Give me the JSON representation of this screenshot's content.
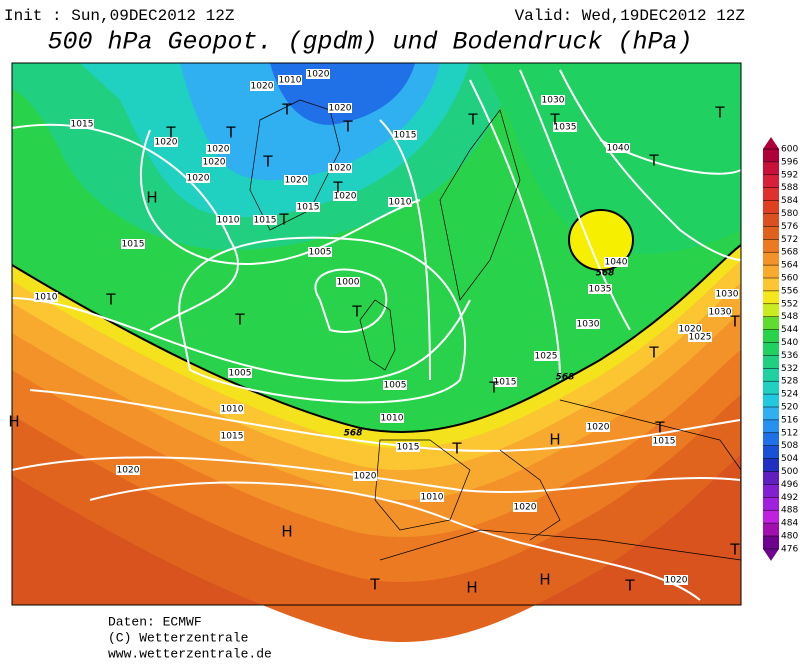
{
  "header": {
    "init": "Init : Sun,09DEC2012 12Z",
    "valid": "Valid: Wed,19DEC2012 12Z",
    "title": "500 hPa Geopot. (gpdm) und Bodendruck (hPa)"
  },
  "colorbar": {
    "ticks": [
      600,
      596,
      592,
      588,
      584,
      580,
      576,
      572,
      568,
      564,
      560,
      556,
      552,
      548,
      544,
      540,
      536,
      532,
      528,
      524,
      520,
      516,
      512,
      508,
      504,
      500,
      496,
      492,
      488,
      484,
      480,
      476
    ],
    "colors": [
      "#b0003a",
      "#c8103a",
      "#d8203a",
      "#e0302e",
      "#e04020",
      "#dc5020",
      "#e06020",
      "#ec7a22",
      "#f39228",
      "#f8aa2e",
      "#fbc632",
      "#f6e61c",
      "#c8ec20",
      "#60dc30",
      "#28d24a",
      "#20d060",
      "#20d080",
      "#20d0a0",
      "#20d0c0",
      "#20c8e0",
      "#30b0f0",
      "#2890f0",
      "#2070e8",
      "#1850d8",
      "#2030c0",
      "#6020c0",
      "#8020d0",
      "#a020e0",
      "#c020e0",
      "#a010b0",
      "#700090"
    ]
  },
  "map": {
    "isobar_labels": [
      "1015",
      "1020",
      "1020",
      "1020",
      "1020",
      "1010",
      "1015",
      "1015",
      "1010",
      "1005",
      "1000",
      "1005",
      "1005",
      "1010",
      "1010",
      "1015",
      "1015",
      "1020",
      "1020",
      "1010",
      "1020",
      "1020",
      "1015",
      "1025",
      "1020",
      "1015",
      "1030",
      "1035",
      "1040",
      "1040",
      "1035",
      "1030",
      "1015",
      "1010",
      "1020",
      "1020",
      "1020",
      "1015",
      "1020",
      "1030",
      "1020",
      "1025",
      "1030",
      "1010",
      "1020",
      "1020"
    ],
    "contour_labels": [
      "568",
      "568",
      "568"
    ],
    "pressure_centers": [
      "T",
      "T",
      "T",
      "T",
      "T",
      "T",
      "T",
      "T",
      "T",
      "T",
      "T",
      "H",
      "T",
      "T",
      "T",
      "T",
      "T",
      "H",
      "T",
      "T",
      "H",
      "T",
      "H",
      "H",
      "H",
      "T",
      "T",
      "T"
    ]
  },
  "footer": {
    "source": "Daten: ECMWF",
    "copyright": "(C) Wetterzentrale",
    "url": "www.wetterzentrale.de"
  }
}
